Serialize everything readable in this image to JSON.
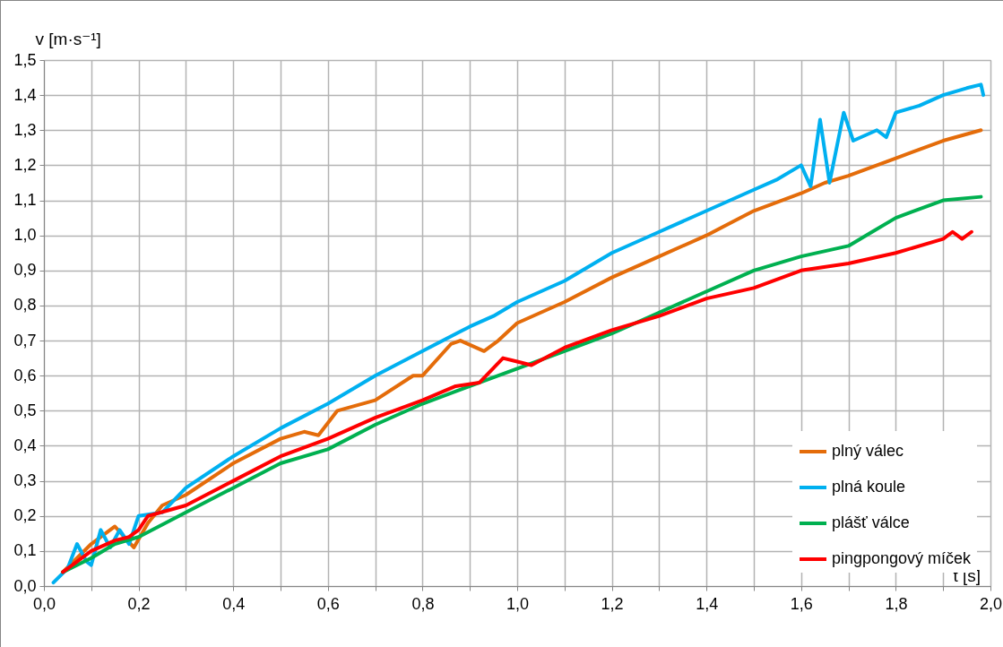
{
  "chart_data": {
    "type": "line",
    "xlabel": "t [s]",
    "ylabel": "v [m·s⁻¹]",
    "xlim": [
      0,
      2.0
    ],
    "ylim": [
      0,
      1.5
    ],
    "xticks": [
      {
        "value": 0,
        "label": "0,0"
      },
      {
        "value": 0.1,
        "label": null
      },
      {
        "value": 0.2,
        "label": "0,2"
      },
      {
        "value": 0.3,
        "label": null
      },
      {
        "value": 0.4,
        "label": "0,4"
      },
      {
        "value": 0.5,
        "label": null
      },
      {
        "value": 0.6,
        "label": "0,6"
      },
      {
        "value": 0.7,
        "label": null
      },
      {
        "value": 0.8,
        "label": "0,8"
      },
      {
        "value": 0.9,
        "label": null
      },
      {
        "value": 1.0,
        "label": "1,0"
      },
      {
        "value": 1.1,
        "label": null
      },
      {
        "value": 1.2,
        "label": "1,2"
      },
      {
        "value": 1.3,
        "label": null
      },
      {
        "value": 1.4,
        "label": "1,4"
      },
      {
        "value": 1.5,
        "label": null
      },
      {
        "value": 1.6,
        "label": "1,6"
      },
      {
        "value": 1.7,
        "label": null
      },
      {
        "value": 1.8,
        "label": "1,8"
      },
      {
        "value": 1.9,
        "label": null
      },
      {
        "value": 2.0,
        "label": "2,0"
      }
    ],
    "yticks": [
      {
        "value": 0,
        "label": "0,0"
      },
      {
        "value": 0.1,
        "label": "0,1"
      },
      {
        "value": 0.2,
        "label": "0,2"
      },
      {
        "value": 0.3,
        "label": "0,3"
      },
      {
        "value": 0.4,
        "label": "0,4"
      },
      {
        "value": 0.5,
        "label": "0,5"
      },
      {
        "value": 0.6,
        "label": "0,6"
      },
      {
        "value": 0.7,
        "label": "0,7"
      },
      {
        "value": 0.8,
        "label": "0,8"
      },
      {
        "value": 0.9,
        "label": "0,9"
      },
      {
        "value": 1.0,
        "label": "1,0"
      },
      {
        "value": 1.1,
        "label": "1,1"
      },
      {
        "value": 1.2,
        "label": "1,2"
      },
      {
        "value": 1.3,
        "label": "1,3"
      },
      {
        "value": 1.4,
        "label": "1,4"
      },
      {
        "value": 1.5,
        "label": "1,5"
      }
    ],
    "grid": true,
    "legend": "bottom right",
    "marker": "none",
    "line_style": "solid",
    "series": [
      {
        "name": "plný válec",
        "color": "#e46c0a",
        "x": [
          0.04,
          0.1,
          0.15,
          0.19,
          0.22,
          0.25,
          0.3,
          0.4,
          0.5,
          0.55,
          0.58,
          0.62,
          0.7,
          0.78,
          0.8,
          0.86,
          0.88,
          0.93,
          0.96,
          1.0,
          1.1,
          1.2,
          1.3,
          1.4,
          1.5,
          1.6,
          1.65,
          1.7,
          1.8,
          1.9,
          1.98
        ],
        "values": [
          0.04,
          0.12,
          0.17,
          0.11,
          0.18,
          0.23,
          0.26,
          0.35,
          0.42,
          0.44,
          0.43,
          0.5,
          0.53,
          0.6,
          0.6,
          0.69,
          0.7,
          0.67,
          0.7,
          0.75,
          0.81,
          0.88,
          0.94,
          1.0,
          1.07,
          1.12,
          1.15,
          1.17,
          1.22,
          1.27,
          1.3
        ]
      },
      {
        "name": "plná koule",
        "color": "#00b0f0",
        "x": [
          0.02,
          0.05,
          0.07,
          0.09,
          0.1,
          0.12,
          0.14,
          0.16,
          0.18,
          0.2,
          0.25,
          0.3,
          0.4,
          0.5,
          0.6,
          0.7,
          0.8,
          0.9,
          0.95,
          1.0,
          1.1,
          1.2,
          1.3,
          1.4,
          1.5,
          1.55,
          1.6,
          1.62,
          1.64,
          1.66,
          1.69,
          1.71,
          1.76,
          1.78,
          1.8,
          1.85,
          1.9,
          1.95,
          1.98,
          1.985
        ],
        "values": [
          0.01,
          0.05,
          0.12,
          0.07,
          0.06,
          0.16,
          0.11,
          0.16,
          0.12,
          0.2,
          0.21,
          0.28,
          0.37,
          0.45,
          0.52,
          0.6,
          0.67,
          0.74,
          0.77,
          0.81,
          0.87,
          0.95,
          1.01,
          1.07,
          1.13,
          1.16,
          1.2,
          1.14,
          1.33,
          1.15,
          1.35,
          1.27,
          1.3,
          1.28,
          1.35,
          1.37,
          1.4,
          1.42,
          1.43,
          1.4
        ]
      },
      {
        "name": "plášť válce",
        "color": "#00b050",
        "x": [
          0.04,
          0.1,
          0.15,
          0.2,
          0.3,
          0.4,
          0.5,
          0.6,
          0.7,
          0.8,
          0.9,
          1.0,
          1.1,
          1.2,
          1.3,
          1.4,
          1.5,
          1.6,
          1.7,
          1.75,
          1.8,
          1.9,
          1.98
        ],
        "values": [
          0.04,
          0.08,
          0.12,
          0.14,
          0.21,
          0.28,
          0.35,
          0.39,
          0.46,
          0.52,
          0.57,
          0.62,
          0.67,
          0.72,
          0.78,
          0.84,
          0.9,
          0.94,
          0.97,
          1.01,
          1.05,
          1.1,
          1.11
        ]
      },
      {
        "name": "pingpongový míček",
        "color": "#ff0000",
        "x": [
          0.04,
          0.07,
          0.1,
          0.15,
          0.18,
          0.2,
          0.22,
          0.3,
          0.4,
          0.5,
          0.6,
          0.7,
          0.8,
          0.87,
          0.92,
          0.97,
          1.0,
          1.03,
          1.1,
          1.2,
          1.3,
          1.4,
          1.5,
          1.6,
          1.7,
          1.8,
          1.9,
          1.92,
          1.94,
          1.96
        ],
        "values": [
          0.04,
          0.07,
          0.1,
          0.13,
          0.14,
          0.16,
          0.2,
          0.23,
          0.3,
          0.37,
          0.42,
          0.48,
          0.53,
          0.57,
          0.58,
          0.65,
          0.64,
          0.63,
          0.68,
          0.73,
          0.77,
          0.82,
          0.85,
          0.9,
          0.92,
          0.95,
          0.99,
          1.01,
          0.99,
          1.01
        ]
      }
    ]
  }
}
